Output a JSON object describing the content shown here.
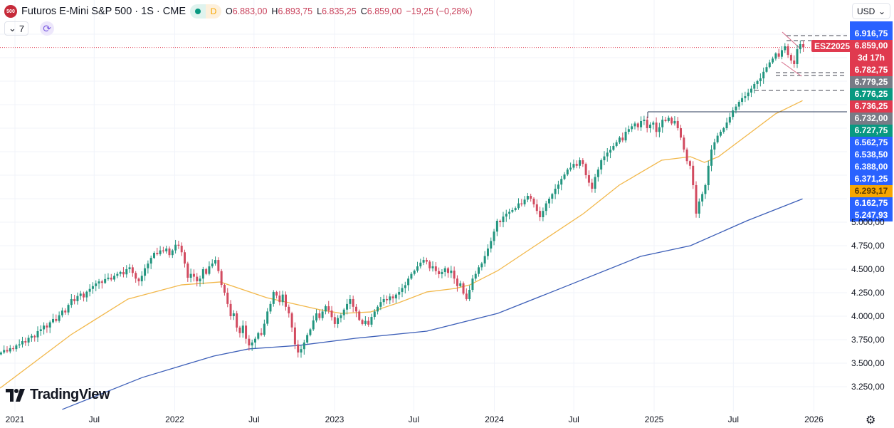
{
  "header": {
    "symbol_icon": "500",
    "title": "Futuros E-Mini S&P 500 · 1S · CME",
    "status_dot_color": "#089981",
    "data_badge": "D",
    "ohlc": {
      "o_label": "O",
      "o": "6.883,00",
      "h_label": "H",
      "h": "6.893,75",
      "l_label": "L",
      "l": "6.835,25",
      "c_label": "C",
      "c": "6.859,00",
      "change": "−19,25 (−0,28%)"
    },
    "indicators_collapse": {
      "icon": "chevron-down-icon",
      "count": "7"
    },
    "refresh_icon": "refresh-icon"
  },
  "currency": {
    "selected": "USD"
  },
  "symbol_tag": "ESZ2025",
  "price_labels": [
    {
      "text": "",
      "color": "#2962ff"
    },
    {
      "text": "6.916,75",
      "color": "#2962ff"
    },
    {
      "text": "6.859,00",
      "color": "#e03a4f"
    },
    {
      "text": "3d 17h",
      "color": "#e03a4f"
    },
    {
      "text": "6.782,75",
      "color": "#e03a4f"
    },
    {
      "text": "6.779,25",
      "color": "#787b86"
    },
    {
      "text": "6.776,25",
      "color": "#089981"
    },
    {
      "text": "6.736,25",
      "color": "#e03a4f"
    },
    {
      "text": "6.732,00",
      "color": "#787b86"
    },
    {
      "text": "6.727,75",
      "color": "#089981"
    },
    {
      "text": "6.562,75",
      "color": "#2962ff"
    },
    {
      "text": "6.538,50",
      "color": "#2962ff"
    },
    {
      "text": "6.388,00",
      "color": "#2962ff"
    },
    {
      "text": "6.371,25",
      "color": "#2962ff"
    },
    {
      "text": "6.293,17",
      "color": "#f7a600"
    },
    {
      "text": "6.162,75",
      "color": "#2962ff"
    },
    {
      "text": "5.247,93",
      "color": "#2962ff"
    }
  ],
  "brand": "TradingView",
  "settings_icon": "gear-icon",
  "chart_data": {
    "type": "candlestick",
    "title": "Futuros E-Mini S&P 500 · 1S · CME",
    "interval": "weekly",
    "first_week": "2020-11-30",
    "y_scale": "linear",
    "ylim": [
      3100,
      7000
    ],
    "y_ticks": [
      {
        "v": 3250,
        "t": "3.250,00"
      },
      {
        "v": 3500,
        "t": "3.500,00"
      },
      {
        "v": 3750,
        "t": "3.750,00"
      },
      {
        "v": 4000,
        "t": "4.000,00"
      },
      {
        "v": 4250,
        "t": "4.250,00"
      },
      {
        "v": 4500,
        "t": "4.500,00"
      },
      {
        "v": 4750,
        "t": "4.750,00"
      },
      {
        "v": 5000,
        "t": "5.000,00"
      }
    ],
    "x_ticks": [
      {
        "d": "2021-01-01",
        "t": "2021"
      },
      {
        "d": "2021-07-01",
        "t": "Jul"
      },
      {
        "d": "2022-01-01",
        "t": "2022"
      },
      {
        "d": "2022-07-01",
        "t": "Jul"
      },
      {
        "d": "2023-01-01",
        "t": "2023"
      },
      {
        "d": "2023-07-01",
        "t": "Jul"
      },
      {
        "d": "2024-01-01",
        "t": "2024"
      },
      {
        "d": "2024-07-01",
        "t": "Jul"
      },
      {
        "d": "2025-01-01",
        "t": "2025"
      },
      {
        "d": "2025-07-01",
        "t": "Jul"
      },
      {
        "d": "2026-01-01",
        "t": "2026"
      }
    ],
    "grid": true,
    "up_color": "#22957f",
    "down_color": "#d24b60",
    "last_price": 6859,
    "closes": [
      3614,
      3640,
      3625,
      3660,
      3650,
      3689,
      3700,
      3735,
      3720,
      3770,
      3790,
      3775,
      3841,
      3860,
      3900,
      3880,
      3935,
      3970,
      3950,
      4010,
      4060,
      4040,
      4120,
      4182,
      4160,
      4215,
      4240,
      4200,
      4260,
      4290,
      4320,
      4348,
      4370,
      4355,
      4395,
      4410,
      4390,
      4430,
      4450,
      4470,
      4445,
      4500,
      4520,
      4460,
      4400,
      4371,
      4430,
      4510,
      4560,
      4620,
      4674,
      4660,
      4700,
      4690,
      4720,
      4650,
      4700,
      4760,
      4750,
      4680,
      4560,
      4409,
      4450,
      4420,
      4371,
      4400,
      4500,
      4450,
      4530,
      4560,
      4598,
      4480,
      4333,
      4250,
      4130,
      4000,
      4030,
      3879,
      3820,
      3900,
      3760,
      3689,
      3720,
      3760,
      3820,
      3803,
      3920,
      4050,
      4130,
      4258,
      4220,
      4150,
      4230,
      4100,
      4030,
      3880,
      3700,
      3614,
      3650,
      3720,
      3800,
      3860,
      3955,
      4030,
      3980,
      4050,
      4106,
      4060,
      3990,
      3917,
      3980,
      4010,
      4070,
      4130,
      4182,
      4100,
      4050,
      3960,
      3917,
      3950,
      3910,
      3992,
      4050,
      4100,
      4150,
      4182,
      4170,
      4210,
      4190,
      4230,
      4258,
      4300,
      4330,
      4400,
      4450,
      4485,
      4530,
      4570,
      4598,
      4580,
      4510,
      4530,
      4480,
      4447,
      4470,
      4510,
      4460,
      4485,
      4400,
      4320,
      4350,
      4240,
      4182,
      4280,
      4400,
      4450,
      4520,
      4561,
      4640,
      4720,
      4800,
      4900,
      5015,
      5000,
      5060,
      5090,
      5110,
      5129,
      5150,
      5200,
      5190,
      5240,
      5280,
      5250,
      5190,
      5120,
      5053,
      5120,
      5200,
      5250,
      5300,
      5356,
      5400,
      5460,
      5508,
      5560,
      5580,
      5620,
      5600,
      5659,
      5620,
      5500,
      5420,
      5356,
      5480,
      5560,
      5659,
      5700,
      5740,
      5770,
      5811,
      5850,
      5900,
      5870,
      5962,
      5990,
      6020,
      6050,
      6010,
      6076,
      6090,
      6000,
      6038,
      6060,
      5960,
      6010,
      6090,
      6076,
      6110,
      6050,
      6076,
      6000,
      5900,
      5773,
      5650,
      5600,
      5394,
      5091,
      5220,
      5300,
      5394,
      5600,
      5773,
      5850,
      5920,
      5962,
      6000,
      6060,
      6120,
      6189,
      6230,
      6280,
      6320,
      6340,
      6379,
      6420,
      6470,
      6500,
      6530,
      6600,
      6650,
      6700,
      6740,
      6795,
      6760,
      6830,
      6871,
      6780,
      6720,
      6682,
      6840,
      6894,
      6859
    ],
    "moving_averages": [
      {
        "color": "#f2b84b",
        "points": [
          [
            "2020-11-28",
            3235
          ],
          [
            "2021-05-09",
            3803
          ],
          [
            "2021-09-16",
            4182
          ],
          [
            "2022-01-16",
            4333
          ],
          [
            "2022-04-15",
            4364
          ],
          [
            "2022-07-30",
            4197
          ],
          [
            "2022-11-29",
            4068
          ],
          [
            "2023-01-17",
            4030
          ],
          [
            "2023-03-24",
            4045
          ],
          [
            "2023-05-28",
            4144
          ],
          [
            "2023-07-31",
            4258
          ],
          [
            "2023-10-04",
            4295
          ],
          [
            "2023-11-06",
            4333
          ],
          [
            "2024-01-09",
            4485
          ],
          [
            "2024-04-16",
            4788
          ],
          [
            "2024-07-23",
            5091
          ],
          [
            "2024-10-13",
            5394
          ],
          [
            "2025-01-18",
            5659
          ],
          [
            "2025-03-25",
            5697
          ],
          [
            "2025-04-26",
            5636
          ],
          [
            "2025-05-28",
            5697
          ],
          [
            "2025-08-01",
            5924
          ],
          [
            "2025-10-05",
            6152
          ],
          [
            "2025-12-06",
            6293
          ]
        ]
      },
      {
        "color": "#3d5fb8",
        "points": [
          [
            "2021-04-19",
            3008
          ],
          [
            "2021-10-19",
            3348
          ],
          [
            "2022-03-31",
            3576
          ],
          [
            "2022-06-19",
            3652
          ],
          [
            "2022-10-11",
            3689
          ],
          [
            "2023-02-18",
            3765
          ],
          [
            "2023-07-31",
            3841
          ],
          [
            "2024-01-09",
            4030
          ],
          [
            "2024-06-21",
            4333
          ],
          [
            "2024-12-01",
            4636
          ],
          [
            "2025-03-25",
            4750
          ],
          [
            "2025-08-01",
            5015
          ],
          [
            "2025-12-06",
            5248
          ]
        ]
      }
    ]
  }
}
